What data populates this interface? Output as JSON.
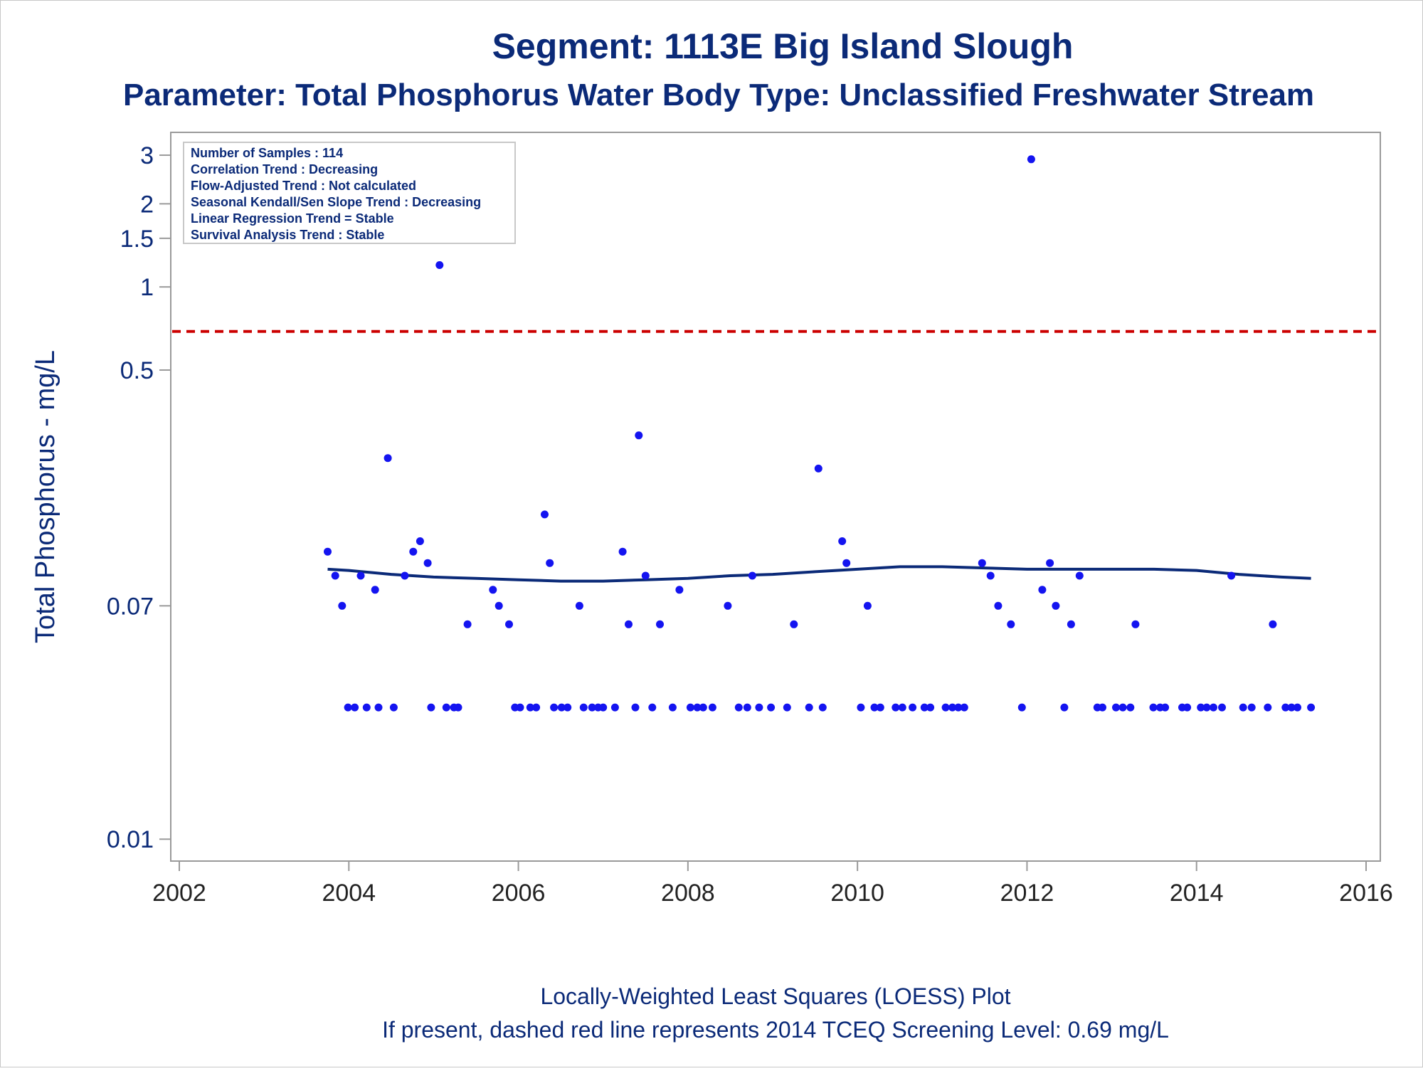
{
  "chart_data": {
    "type": "scatter",
    "title": "Segment: 1113E  Big Island Slough",
    "subtitle": "Parameter: Total Phosphorus   Water Body Type: Unclassified Freshwater Stream",
    "ylabel": "Total Phosphorus - mg/L",
    "xlabel": "",
    "footnotes": [
      "Locally-Weighted Least Squares (LOESS) Plot",
      "If present, dashed red line represents 2014 TCEQ Screening Level: 0.69 mg/L"
    ],
    "y_scale": "log",
    "xlim": [
      2002,
      2016
    ],
    "ylim": [
      0.009,
      3.3
    ],
    "x_ticks": [
      2002,
      2004,
      2006,
      2008,
      2010,
      2012,
      2014,
      2016
    ],
    "y_ticks": [
      {
        "value": 0.01,
        "label": "0.01"
      },
      {
        "value": 0.07,
        "label": "0.07"
      },
      {
        "value": 0.5,
        "label": "0.5"
      },
      {
        "value": 1,
        "label": "1"
      },
      {
        "value": 1.5,
        "label": "1.5"
      },
      {
        "value": 2,
        "label": "2"
      },
      {
        "value": 3,
        "label": "3"
      }
    ],
    "stats_box": [
      "Number of Samples : 114",
      "Correlation Trend : Decreasing",
      "Flow-Adjusted Trend : Not calculated",
      "Seasonal Kendall/Sen Slope Trend : Decreasing",
      "Linear Regression Trend = Stable",
      "Survival Analysis Trend : Stable"
    ],
    "screening_level": {
      "value": 0.69,
      "color": "#cc0000",
      "style": "dashed"
    },
    "colors": {
      "text": "#0b2a78",
      "points": "#1414f0",
      "loess": "#0b2a78",
      "axis": "#9a9a9a"
    },
    "points": [
      [
        2003.75,
        0.11
      ],
      [
        2003.84,
        0.09
      ],
      [
        2003.92,
        0.07
      ],
      [
        2004.14,
        0.09
      ],
      [
        2004.31,
        0.08
      ],
      [
        2004.46,
        0.24
      ],
      [
        2004.66,
        0.09
      ],
      [
        2004.76,
        0.11
      ],
      [
        2004.84,
        0.12
      ],
      [
        2004.93,
        0.1
      ],
      [
        2005.07,
        1.2
      ],
      [
        2005.4,
        0.06
      ],
      [
        2005.7,
        0.08
      ],
      [
        2005.77,
        0.07
      ],
      [
        2005.89,
        0.06
      ],
      [
        2006.31,
        0.15
      ],
      [
        2006.37,
        0.1
      ],
      [
        2006.72,
        0.07
      ],
      [
        2007.23,
        0.11
      ],
      [
        2007.3,
        0.06
      ],
      [
        2007.42,
        0.29
      ],
      [
        2007.5,
        0.09
      ],
      [
        2007.67,
        0.06
      ],
      [
        2007.9,
        0.08
      ],
      [
        2008.47,
        0.07
      ],
      [
        2008.76,
        0.09
      ],
      [
        2009.25,
        0.06
      ],
      [
        2009.54,
        0.22
      ],
      [
        2009.82,
        0.12
      ],
      [
        2009.87,
        0.1
      ],
      [
        2010.12,
        0.07
      ],
      [
        2011.47,
        0.1
      ],
      [
        2011.57,
        0.09
      ],
      [
        2011.66,
        0.07
      ],
      [
        2011.81,
        0.06
      ],
      [
        2012.05,
        2.9
      ],
      [
        2012.18,
        0.08
      ],
      [
        2012.27,
        0.1
      ],
      [
        2012.34,
        0.07
      ],
      [
        2012.52,
        0.06
      ],
      [
        2012.62,
        0.09
      ],
      [
        2013.28,
        0.06
      ],
      [
        2014.41,
        0.09
      ],
      [
        2014.9,
        0.06
      ],
      [
        2003.99,
        0.03
      ],
      [
        2004.07,
        0.03
      ],
      [
        2004.21,
        0.03
      ],
      [
        2004.35,
        0.03
      ],
      [
        2004.53,
        0.03
      ],
      [
        2004.97,
        0.03
      ],
      [
        2005.15,
        0.03
      ],
      [
        2005.24,
        0.03
      ],
      [
        2005.29,
        0.03
      ],
      [
        2005.96,
        0.03
      ],
      [
        2006.02,
        0.03
      ],
      [
        2006.14,
        0.03
      ],
      [
        2006.21,
        0.03
      ],
      [
        2006.42,
        0.03
      ],
      [
        2006.51,
        0.03
      ],
      [
        2006.58,
        0.03
      ],
      [
        2006.77,
        0.03
      ],
      [
        2006.87,
        0.03
      ],
      [
        2006.94,
        0.03
      ],
      [
        2007.0,
        0.03
      ],
      [
        2007.14,
        0.03
      ],
      [
        2007.38,
        0.03
      ],
      [
        2007.58,
        0.03
      ],
      [
        2007.82,
        0.03
      ],
      [
        2008.03,
        0.03
      ],
      [
        2008.11,
        0.03
      ],
      [
        2008.18,
        0.03
      ],
      [
        2008.29,
        0.03
      ],
      [
        2008.6,
        0.03
      ],
      [
        2008.7,
        0.03
      ],
      [
        2008.84,
        0.03
      ],
      [
        2008.98,
        0.03
      ],
      [
        2009.17,
        0.03
      ],
      [
        2009.43,
        0.03
      ],
      [
        2009.59,
        0.03
      ],
      [
        2010.04,
        0.03
      ],
      [
        2010.2,
        0.03
      ],
      [
        2010.27,
        0.03
      ],
      [
        2010.45,
        0.03
      ],
      [
        2010.53,
        0.03
      ],
      [
        2010.65,
        0.03
      ],
      [
        2010.79,
        0.03
      ],
      [
        2010.86,
        0.03
      ],
      [
        2011.04,
        0.03
      ],
      [
        2011.12,
        0.03
      ],
      [
        2011.19,
        0.03
      ],
      [
        2011.26,
        0.03
      ],
      [
        2011.94,
        0.03
      ],
      [
        2012.44,
        0.03
      ],
      [
        2012.83,
        0.03
      ],
      [
        2012.89,
        0.03
      ],
      [
        2013.05,
        0.03
      ],
      [
        2013.13,
        0.03
      ],
      [
        2013.22,
        0.03
      ],
      [
        2013.49,
        0.03
      ],
      [
        2013.57,
        0.03
      ],
      [
        2013.63,
        0.03
      ],
      [
        2013.83,
        0.03
      ],
      [
        2013.89,
        0.03
      ],
      [
        2014.05,
        0.03
      ],
      [
        2014.12,
        0.03
      ],
      [
        2014.2,
        0.03
      ],
      [
        2014.3,
        0.03
      ],
      [
        2014.55,
        0.03
      ],
      [
        2014.65,
        0.03
      ],
      [
        2014.84,
        0.03
      ],
      [
        2015.05,
        0.03
      ],
      [
        2015.12,
        0.03
      ],
      [
        2015.19,
        0.03
      ],
      [
        2015.35,
        0.03
      ]
    ],
    "loess": [
      [
        2003.75,
        0.095
      ],
      [
        2004.0,
        0.094
      ],
      [
        2004.5,
        0.091
      ],
      [
        2005.0,
        0.089
      ],
      [
        2005.5,
        0.088
      ],
      [
        2006.0,
        0.087
      ],
      [
        2006.5,
        0.086
      ],
      [
        2007.0,
        0.086
      ],
      [
        2007.5,
        0.087
      ],
      [
        2008.0,
        0.088
      ],
      [
        2008.5,
        0.09
      ],
      [
        2009.0,
        0.091
      ],
      [
        2009.5,
        0.093
      ],
      [
        2010.0,
        0.095
      ],
      [
        2010.5,
        0.097
      ],
      [
        2011.0,
        0.097
      ],
      [
        2011.5,
        0.096
      ],
      [
        2012.0,
        0.095
      ],
      [
        2012.5,
        0.095
      ],
      [
        2013.0,
        0.095
      ],
      [
        2013.5,
        0.095
      ],
      [
        2014.0,
        0.094
      ],
      [
        2014.5,
        0.091
      ],
      [
        2015.0,
        0.089
      ],
      [
        2015.35,
        0.088
      ]
    ]
  }
}
